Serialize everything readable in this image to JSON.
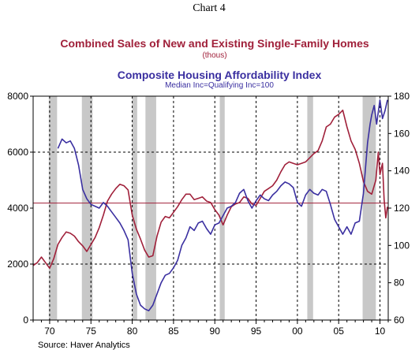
{
  "header": {
    "chart_number": "Chart 4"
  },
  "chart_data": {
    "type": "line",
    "title": "Combined Sales of New and Existing Single-Family Homes",
    "title_units": "(thous)",
    "title_color": "#a0203a",
    "subtitle": "Composite Housing Affordability Index",
    "subtitle_note": "Median Inc=Qualifying Inc=100",
    "subtitle_color": "#3a2fa0",
    "source": "Source: Haver Analytics",
    "x_range": [
      1968,
      2011
    ],
    "x_ticks": [
      {
        "value": 1970,
        "label": "70"
      },
      {
        "value": 1975,
        "label": "75"
      },
      {
        "value": 1980,
        "label": "80"
      },
      {
        "value": 1985,
        "label": "85"
      },
      {
        "value": 1990,
        "label": "90"
      },
      {
        "value": 1995,
        "label": "95"
      },
      {
        "value": 2000,
        "label": "00"
      },
      {
        "value": 2005,
        "label": "05"
      },
      {
        "value": 2010,
        "label": "10"
      }
    ],
    "y_left": {
      "range": [
        0,
        8000
      ],
      "ticks": [
        "0",
        "2000",
        "4000",
        "6000",
        "8000"
      ],
      "tick_values": [
        0,
        2000,
        4000,
        6000,
        8000
      ]
    },
    "y_right": {
      "range": [
        60,
        180
      ],
      "ticks": [
        "60",
        "80",
        "100",
        "120",
        "140",
        "160",
        "180"
      ],
      "tick_values": [
        60,
        80,
        100,
        120,
        140,
        160,
        180
      ]
    },
    "grid": "dashed vertical at x ticks; dashed horizontal at 2000 and 6000",
    "reference_line": {
      "axis": "left",
      "value": 4180,
      "color": "#a0203a"
    },
    "recessions": [
      [
        1969.9,
        1970.9
      ],
      [
        1973.9,
        1975.2
      ],
      [
        1980.0,
        1980.6
      ],
      [
        1981.6,
        1982.9
      ],
      [
        1990.6,
        1991.2
      ],
      [
        2001.2,
        2001.9
      ],
      [
        2007.9,
        2009.5
      ]
    ],
    "series": [
      {
        "axis": "left",
        "color": "#a0203a",
        "points": [
          [
            1968.0,
            1950
          ],
          [
            1968.5,
            2050
          ],
          [
            1969.0,
            2250
          ],
          [
            1969.5,
            2050
          ],
          [
            1970.0,
            1850
          ],
          [
            1970.5,
            2200
          ],
          [
            1971.0,
            2700
          ],
          [
            1971.5,
            2950
          ],
          [
            1972.0,
            3150
          ],
          [
            1972.5,
            3100
          ],
          [
            1973.0,
            3000
          ],
          [
            1973.5,
            2800
          ],
          [
            1974.0,
            2650
          ],
          [
            1974.5,
            2450
          ],
          [
            1975.0,
            2700
          ],
          [
            1975.5,
            2950
          ],
          [
            1976.0,
            3300
          ],
          [
            1976.5,
            3750
          ],
          [
            1977.0,
            4250
          ],
          [
            1977.5,
            4500
          ],
          [
            1978.0,
            4700
          ],
          [
            1978.5,
            4850
          ],
          [
            1979.0,
            4800
          ],
          [
            1979.5,
            4650
          ],
          [
            1980.0,
            3750
          ],
          [
            1980.5,
            3250
          ],
          [
            1981.0,
            2900
          ],
          [
            1981.5,
            2500
          ],
          [
            1982.0,
            2250
          ],
          [
            1982.5,
            2300
          ],
          [
            1983.0,
            3000
          ],
          [
            1983.5,
            3500
          ],
          [
            1984.0,
            3700
          ],
          [
            1984.5,
            3650
          ],
          [
            1985.0,
            3850
          ],
          [
            1985.5,
            4050
          ],
          [
            1986.0,
            4300
          ],
          [
            1986.5,
            4500
          ],
          [
            1987.0,
            4500
          ],
          [
            1987.5,
            4300
          ],
          [
            1988.0,
            4350
          ],
          [
            1988.5,
            4400
          ],
          [
            1989.0,
            4250
          ],
          [
            1989.5,
            4200
          ],
          [
            1990.0,
            3950
          ],
          [
            1990.5,
            3750
          ],
          [
            1991.0,
            3400
          ],
          [
            1991.5,
            3750
          ],
          [
            1992.0,
            4050
          ],
          [
            1992.5,
            4150
          ],
          [
            1993.0,
            4200
          ],
          [
            1993.5,
            4400
          ],
          [
            1994.0,
            4350
          ],
          [
            1994.5,
            4150
          ],
          [
            1995.0,
            4100
          ],
          [
            1995.5,
            4350
          ],
          [
            1996.0,
            4600
          ],
          [
            1996.5,
            4700
          ],
          [
            1997.0,
            4800
          ],
          [
            1997.5,
            5000
          ],
          [
            1998.0,
            5300
          ],
          [
            1998.5,
            5550
          ],
          [
            1999.0,
            5650
          ],
          [
            1999.5,
            5600
          ],
          [
            2000.0,
            5550
          ],
          [
            2000.5,
            5600
          ],
          [
            2001.0,
            5650
          ],
          [
            2001.5,
            5800
          ],
          [
            2002.0,
            5950
          ],
          [
            2002.5,
            6050
          ],
          [
            2003.0,
            6400
          ],
          [
            2003.5,
            6900
          ],
          [
            2004.0,
            7000
          ],
          [
            2004.5,
            7250
          ],
          [
            2005.0,
            7350
          ],
          [
            2005.5,
            7500
          ],
          [
            2006.0,
            6900
          ],
          [
            2006.5,
            6400
          ],
          [
            2007.0,
            6100
          ],
          [
            2007.5,
            5600
          ],
          [
            2008.0,
            4950
          ],
          [
            2008.5,
            4600
          ],
          [
            2009.0,
            4500
          ],
          [
            2009.5,
            5000
          ],
          [
            2009.8,
            6000
          ],
          [
            2010.0,
            5200
          ],
          [
            2010.3,
            5600
          ],
          [
            2010.5,
            4300
          ],
          [
            2010.7,
            3650
          ],
          [
            2010.9,
            4050
          ]
        ]
      },
      {
        "axis": "right",
        "color": "#3a2fa0",
        "points": [
          [
            1971.0,
            152
          ],
          [
            1971.5,
            157
          ],
          [
            1972.0,
            155
          ],
          [
            1972.5,
            156
          ],
          [
            1973.0,
            152
          ],
          [
            1973.5,
            143
          ],
          [
            1974.0,
            130
          ],
          [
            1974.5,
            125
          ],
          [
            1975.0,
            122
          ],
          [
            1975.5,
            121
          ],
          [
            1976.0,
            120
          ],
          [
            1976.5,
            123
          ],
          [
            1977.0,
            121
          ],
          [
            1977.5,
            118
          ],
          [
            1978.0,
            115
          ],
          [
            1978.5,
            112
          ],
          [
            1979.0,
            108
          ],
          [
            1979.5,
            103
          ],
          [
            1980.0,
            85
          ],
          [
            1980.5,
            74
          ],
          [
            1981.0,
            68
          ],
          [
            1981.5,
            66
          ],
          [
            1982.0,
            65
          ],
          [
            1982.5,
            68
          ],
          [
            1983.0,
            74
          ],
          [
            1983.5,
            80
          ],
          [
            1984.0,
            84
          ],
          [
            1984.5,
            85
          ],
          [
            1985.0,
            88
          ],
          [
            1985.5,
            92
          ],
          [
            1986.0,
            100
          ],
          [
            1986.5,
            104
          ],
          [
            1987.0,
            110
          ],
          [
            1987.5,
            108
          ],
          [
            1988.0,
            112
          ],
          [
            1988.5,
            113
          ],
          [
            1989.0,
            109
          ],
          [
            1989.5,
            106
          ],
          [
            1990.0,
            111
          ],
          [
            1990.5,
            112
          ],
          [
            1991.0,
            116
          ],
          [
            1991.5,
            120
          ],
          [
            1992.0,
            121
          ],
          [
            1992.5,
            123
          ],
          [
            1993.0,
            128
          ],
          [
            1993.5,
            130
          ],
          [
            1994.0,
            124
          ],
          [
            1994.5,
            120
          ],
          [
            1995.0,
            124
          ],
          [
            1995.5,
            127
          ],
          [
            1996.0,
            125
          ],
          [
            1996.5,
            124
          ],
          [
            1997.0,
            127
          ],
          [
            1997.5,
            129
          ],
          [
            1998.0,
            132
          ],
          [
            1998.5,
            134
          ],
          [
            1999.0,
            133
          ],
          [
            1999.5,
            131
          ],
          [
            2000.0,
            123
          ],
          [
            2000.5,
            121
          ],
          [
            2001.0,
            127
          ],
          [
            2001.5,
            130
          ],
          [
            2002.0,
            128
          ],
          [
            2002.5,
            127
          ],
          [
            2003.0,
            130
          ],
          [
            2003.5,
            129
          ],
          [
            2004.0,
            122
          ],
          [
            2004.5,
            114
          ],
          [
            2005.0,
            110
          ],
          [
            2005.5,
            106
          ],
          [
            2006.0,
            110
          ],
          [
            2006.5,
            106
          ],
          [
            2007.0,
            112
          ],
          [
            2007.5,
            113
          ],
          [
            2008.0,
            128
          ],
          [
            2008.5,
            155
          ],
          [
            2008.8,
            165
          ],
          [
            2009.0,
            170
          ],
          [
            2009.3,
            175
          ],
          [
            2009.6,
            165
          ],
          [
            2010.0,
            178
          ],
          [
            2010.3,
            168
          ],
          [
            2010.6,
            172
          ],
          [
            2010.9,
            178
          ]
        ]
      }
    ]
  }
}
